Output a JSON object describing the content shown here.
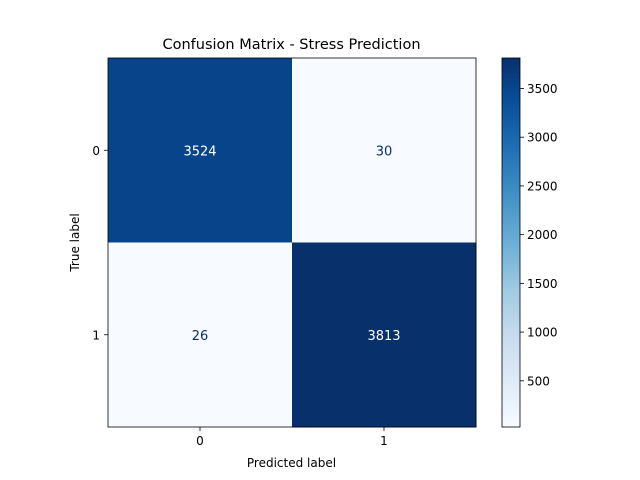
{
  "chart_data": {
    "type": "heatmap",
    "title": "Confusion Matrix - Stress Prediction",
    "xlabel": "Predicted label",
    "ylabel": "True label",
    "x_categories": [
      "0",
      "1"
    ],
    "y_categories": [
      "0",
      "1"
    ],
    "values": [
      [
        3524,
        30
      ],
      [
        26,
        3813
      ]
    ],
    "colormap": "Blues",
    "color_range": [
      26,
      3813
    ],
    "colorbar_ticks": [
      500,
      1000,
      1500,
      2000,
      2500,
      3000,
      3500
    ],
    "colorbar_tick_labels": [
      "500",
      "1000",
      "1500",
      "2000",
      "2500",
      "3000",
      "3500"
    ]
  }
}
